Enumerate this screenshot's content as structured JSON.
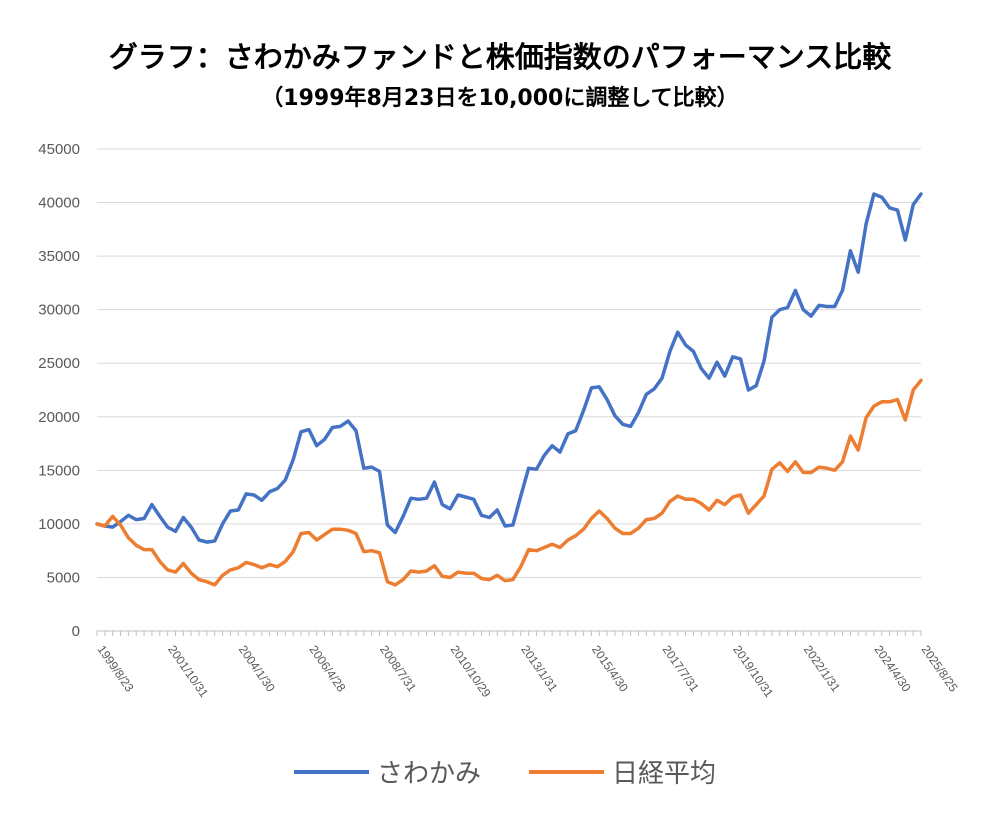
{
  "chart_data": {
    "type": "line",
    "title": "グラフ：さわかみファンドと株価指数のパフォーマンス比較",
    "subtitle": "（1999年8月23日を10,000に調整して比較）",
    "xlabel": "",
    "ylabel": "",
    "ylim": [
      0,
      45000
    ],
    "yticks": [
      "0",
      "5000",
      "10000",
      "15000",
      "20000",
      "25000",
      "30000",
      "35000",
      "40000",
      "45000"
    ],
    "x_labels": [
      {
        "index": 0,
        "label": "1999/8/23"
      },
      {
        "index": 9,
        "label": "2001/10/31"
      },
      {
        "index": 18,
        "label": "2004/1/30"
      },
      {
        "index": 27,
        "label": "2006/4/28"
      },
      {
        "index": 36,
        "label": "2008/7/31"
      },
      {
        "index": 45,
        "label": "2010/10/29"
      },
      {
        "index": 54,
        "label": "2013/1/31"
      },
      {
        "index": 63,
        "label": "2015/4/30"
      },
      {
        "index": 72,
        "label": "2017/7/31"
      },
      {
        "index": 81,
        "label": "2019/10/31"
      },
      {
        "index": 90,
        "label": "2022/1/31"
      },
      {
        "index": 99,
        "label": "2024/4/30"
      },
      {
        "index": 105,
        "label": "2025/8/25"
      }
    ],
    "grid": true,
    "legend_position": "bottom",
    "series": [
      {
        "name": "さわかみ",
        "color": "#4472C4",
        "values": [
          10000,
          9800,
          9700,
          10200,
          10800,
          10400,
          10500,
          11800,
          10700,
          9700,
          9300,
          10600,
          9700,
          8500,
          8300,
          8400,
          10000,
          11200,
          11300,
          12800,
          12700,
          12200,
          13000,
          13300,
          14100,
          16000,
          18600,
          18800,
          17300,
          17900,
          19000,
          19100,
          19600,
          18700,
          15200,
          15300,
          14900,
          9900,
          9200,
          10700,
          12400,
          12300,
          12400,
          13900,
          11800,
          11400,
          12700,
          12500,
          12300,
          10800,
          10600,
          11300,
          9800,
          9900,
          12600,
          15200,
          15100,
          16400,
          17300,
          16700,
          18400,
          18700,
          20600,
          22700,
          22800,
          21600,
          20100,
          19300,
          19100,
          20400,
          22100,
          22600,
          23600,
          26100,
          27900,
          26700,
          26100,
          24500,
          23600,
          25100,
          23800,
          25600,
          25400,
          22500,
          22900,
          25200,
          29300,
          30000,
          30200,
          31800,
          30000,
          29400,
          30400,
          30300,
          30300,
          31800,
          35500,
          33500,
          38000,
          40800,
          40500,
          39500,
          39300,
          36500,
          39800,
          40800
        ]
      },
      {
        "name": "日経平均",
        "color": "#ED7D31",
        "values": [
          10000,
          9800,
          10700,
          9900,
          8700,
          8000,
          7600,
          7600,
          6500,
          5700,
          5500,
          6300,
          5400,
          4800,
          4600,
          4300,
          5200,
          5700,
          5900,
          6400,
          6200,
          5900,
          6200,
          6000,
          6500,
          7400,
          9100,
          9200,
          8500,
          9000,
          9500,
          9500,
          9400,
          9100,
          7400,
          7500,
          7300,
          4600,
          4300,
          4800,
          5600,
          5500,
          5600,
          6100,
          5100,
          5000,
          5500,
          5400,
          5400,
          4900,
          4800,
          5200,
          4700,
          4800,
          6000,
          7600,
          7500,
          7800,
          8100,
          7800,
          8500,
          8900,
          9500,
          10500,
          11200,
          10500,
          9600,
          9100,
          9100,
          9600,
          10400,
          10500,
          11000,
          12100,
          12600,
          12300,
          12300,
          11900,
          11300,
          12200,
          11800,
          12500,
          12700,
          11000,
          11800,
          12600,
          15100,
          15700,
          14900,
          15800,
          14800,
          14800,
          15300,
          15200,
          15000,
          15800,
          18200,
          16900,
          19900,
          21000,
          21400,
          21400,
          21600,
          19700,
          22500,
          23400
        ]
      }
    ]
  }
}
